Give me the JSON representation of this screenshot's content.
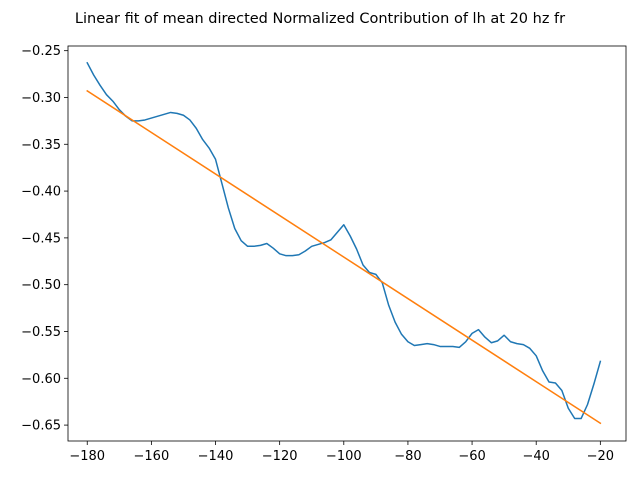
{
  "chart_data": {
    "type": "line",
    "title": "Linear fit of mean directed Normalized Contribution of lh at 20 hz fr",
    "xlabel": "",
    "ylabel": "",
    "xlim": [
      -186,
      -12
    ],
    "ylim": [
      -0.667,
      -0.245
    ],
    "grid": false,
    "legend": "none",
    "x_ticks": [
      -180,
      -160,
      -140,
      -120,
      -100,
      -80,
      -60,
      -40,
      -20
    ],
    "x_tick_labels": [
      "−180",
      "−160",
      "−140",
      "−120",
      "−100",
      "−80",
      "−60",
      "−40",
      "−20"
    ],
    "y_ticks": [
      -0.25,
      -0.3,
      -0.35,
      -0.4,
      -0.45,
      -0.5,
      -0.55,
      -0.6,
      -0.65
    ],
    "y_tick_labels": [
      "−0.25",
      "−0.30",
      "−0.35",
      "−0.40",
      "−0.45",
      "−0.50",
      "−0.55",
      "−0.60",
      "−0.65"
    ],
    "series": [
      {
        "color": "#1f77b4",
        "x": [
          -180,
          -178,
          -176,
          -174,
          -172,
          -170,
          -168,
          -166,
          -164,
          -162,
          -160,
          -158,
          -156,
          -154,
          -152,
          -150,
          -148,
          -146,
          -144,
          -142,
          -140,
          -138,
          -136,
          -134,
          -132,
          -130,
          -128,
          -126,
          -124,
          -122,
          -120,
          -118,
          -116,
          -114,
          -112,
          -110,
          -108,
          -106,
          -104,
          -102,
          -100,
          -98,
          -96,
          -94,
          -92,
          -90,
          -88,
          -86,
          -84,
          -82,
          -80,
          -78,
          -76,
          -74,
          -72,
          -70,
          -68,
          -66,
          -64,
          -62,
          -60,
          -58,
          -56,
          -54,
          -52,
          -50,
          -48,
          -46,
          -44,
          -42,
          -40,
          -38,
          -36,
          -34,
          -32,
          -30,
          -28,
          -26,
          -24,
          -22,
          -20
        ],
        "y": [
          -0.263,
          -0.276,
          -0.287,
          -0.297,
          -0.304,
          -0.313,
          -0.32,
          -0.325,
          -0.325,
          -0.324,
          -0.322,
          -0.32,
          -0.318,
          -0.316,
          -0.317,
          -0.319,
          -0.324,
          -0.333,
          -0.345,
          -0.354,
          -0.366,
          -0.392,
          -0.418,
          -0.44,
          -0.453,
          -0.459,
          -0.459,
          -0.458,
          -0.456,
          -0.461,
          -0.467,
          -0.469,
          -0.469,
          -0.468,
          -0.464,
          -0.459,
          -0.457,
          -0.455,
          -0.452,
          -0.444,
          -0.436,
          -0.448,
          -0.462,
          -0.479,
          -0.487,
          -0.489,
          -0.498,
          -0.522,
          -0.54,
          -0.553,
          -0.561,
          -0.565,
          -0.564,
          -0.563,
          -0.564,
          -0.566,
          -0.566,
          -0.566,
          -0.567,
          -0.561,
          -0.552,
          -0.548,
          -0.556,
          -0.562,
          -0.56,
          -0.554,
          -0.561,
          -0.563,
          -0.564,
          -0.568,
          -0.576,
          -0.592,
          -0.604,
          -0.605,
          -0.613,
          -0.632,
          -0.643,
          -0.643,
          -0.628,
          -0.606,
          -0.582
        ]
      },
      {
        "color": "#ff7f0e",
        "x": [
          -180,
          -20
        ],
        "y": [
          -0.293,
          -0.648
        ]
      }
    ]
  }
}
